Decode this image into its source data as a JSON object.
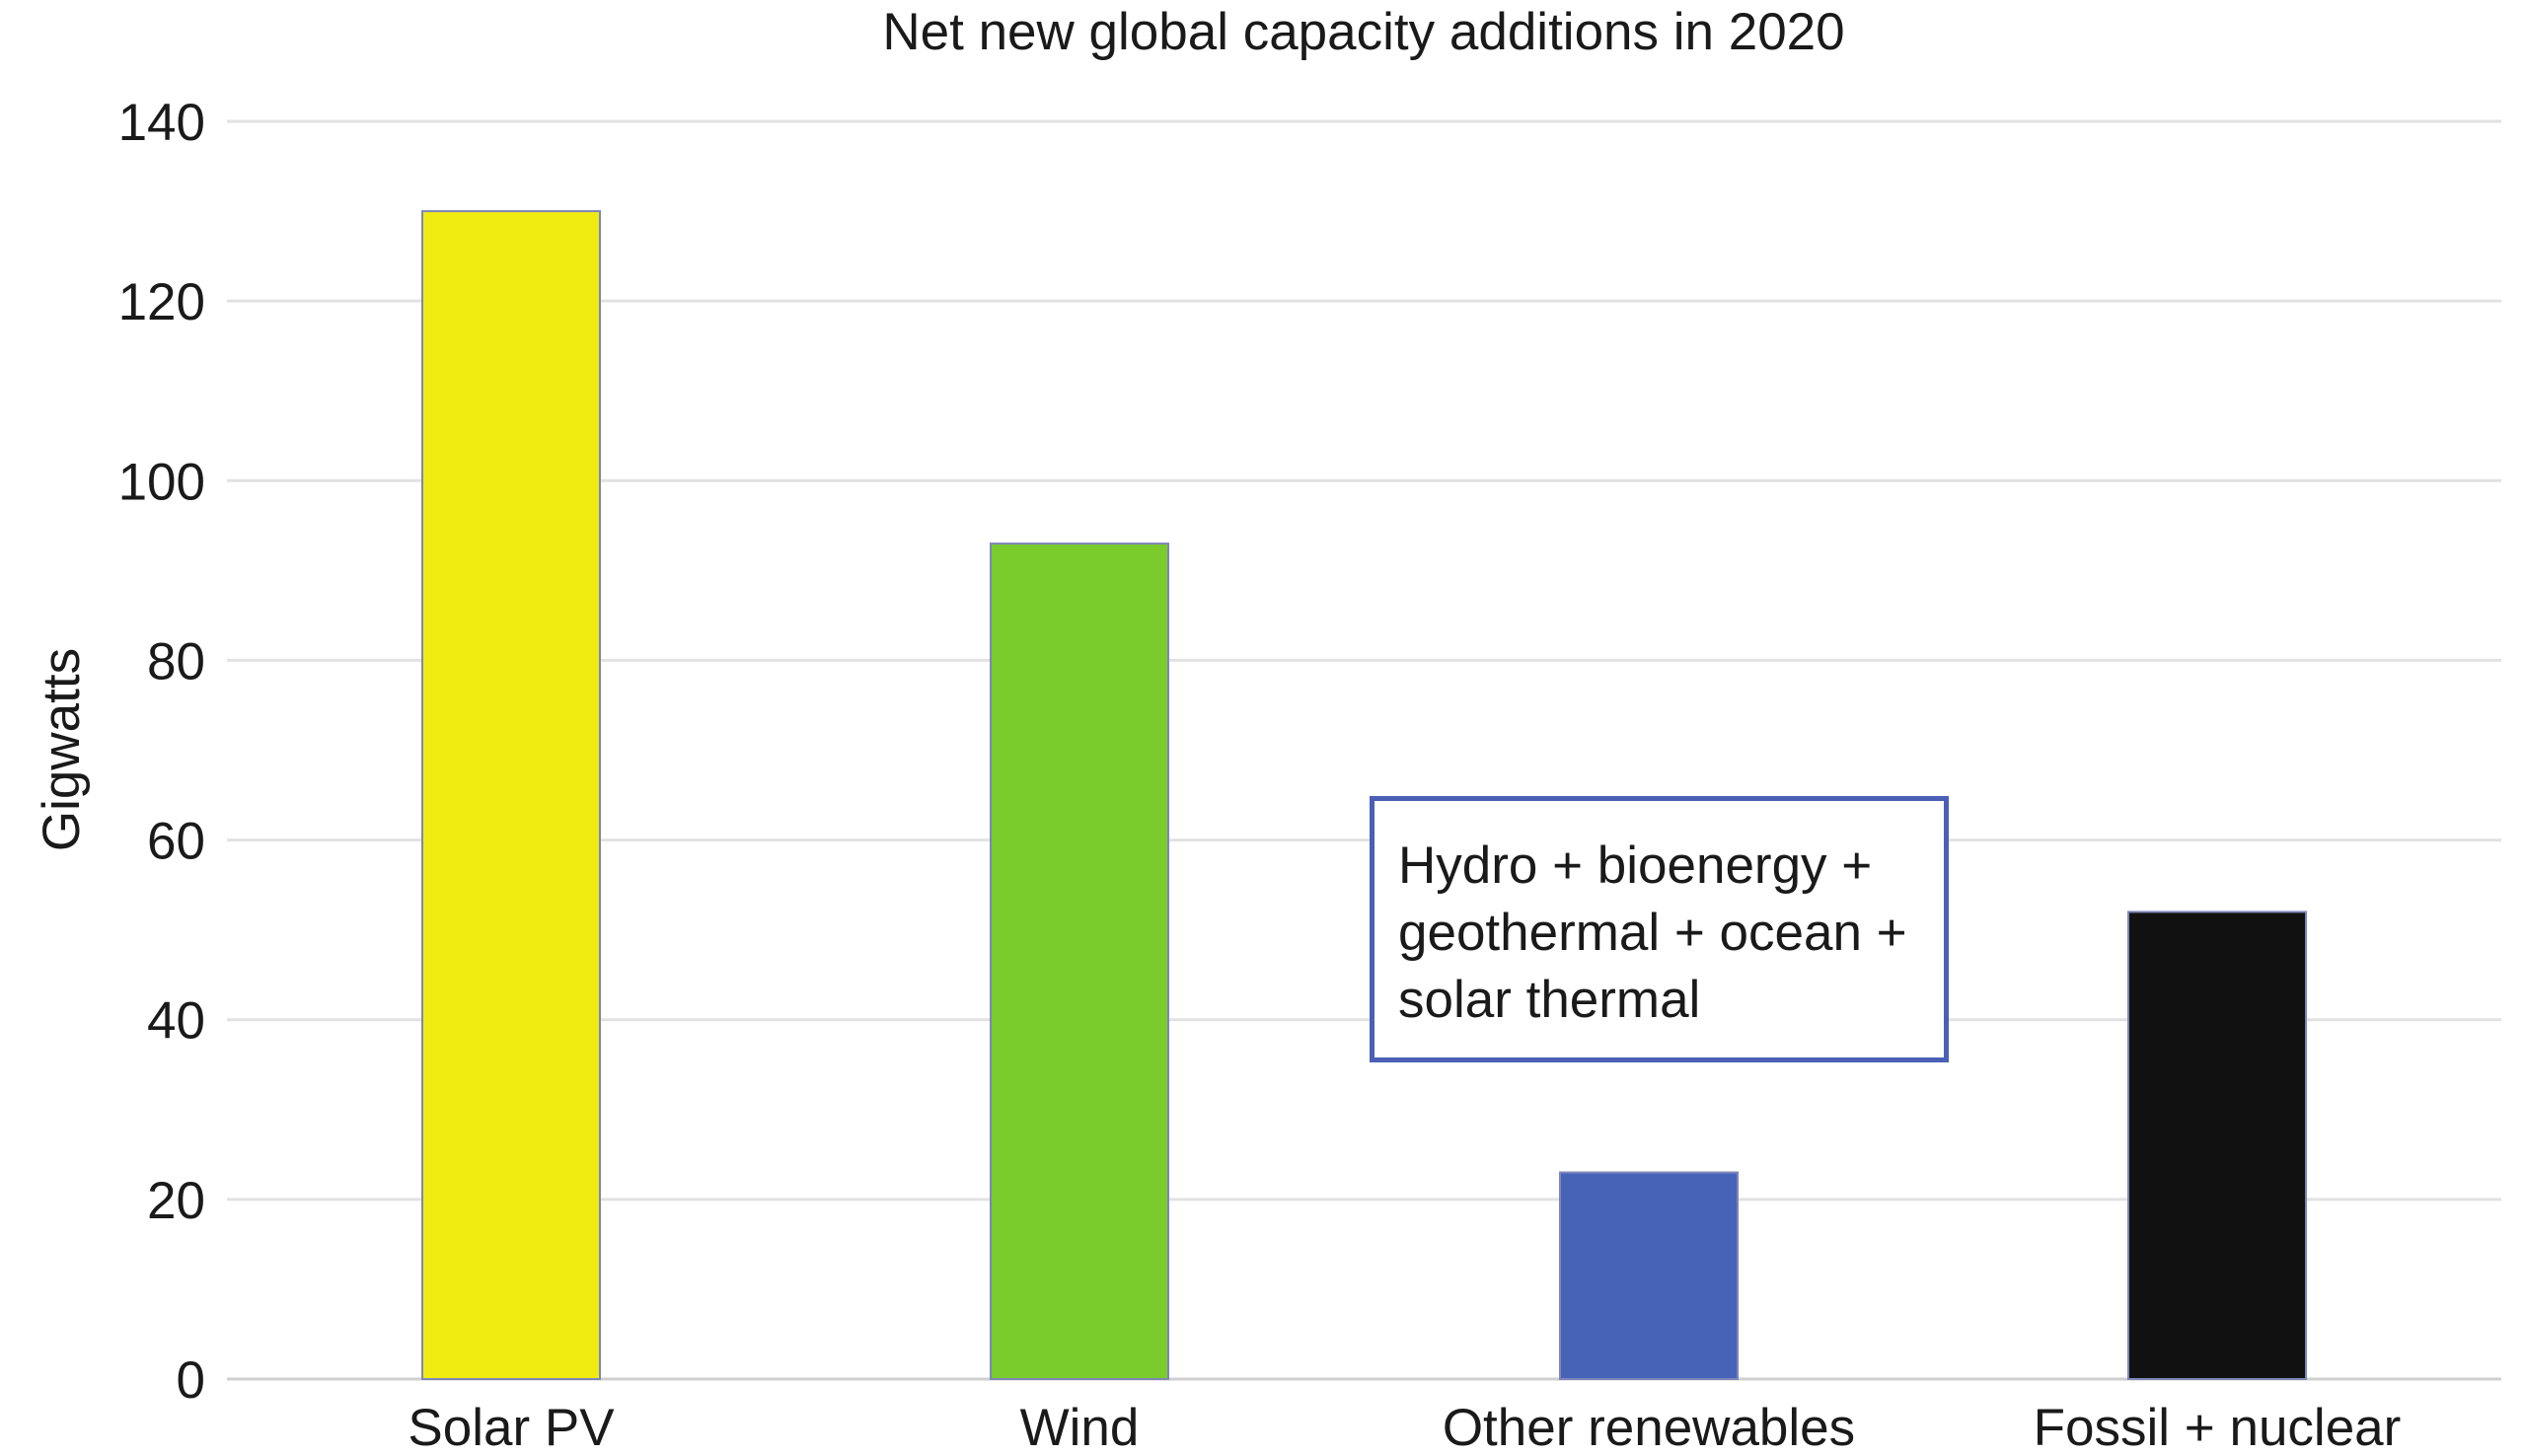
{
  "chart_data": {
    "type": "bar",
    "title": "Net new global capacity additions in 2020",
    "xlabel": "",
    "ylabel": "Gigwatts",
    "ylim": [
      0,
      140
    ],
    "yticks": [
      0,
      20,
      40,
      60,
      80,
      100,
      120,
      140
    ],
    "grid": true,
    "categories": [
      "Solar PV",
      "Wind",
      "Other renewables",
      "Fossil + nuclear"
    ],
    "values": [
      130,
      93,
      23,
      52
    ],
    "colors": [
      "#f0ec12",
      "#7acc2c",
      "#4663b8",
      "#111111"
    ],
    "annotation": "Hydro + bioenergy + geothermal + ocean + solar thermal"
  }
}
